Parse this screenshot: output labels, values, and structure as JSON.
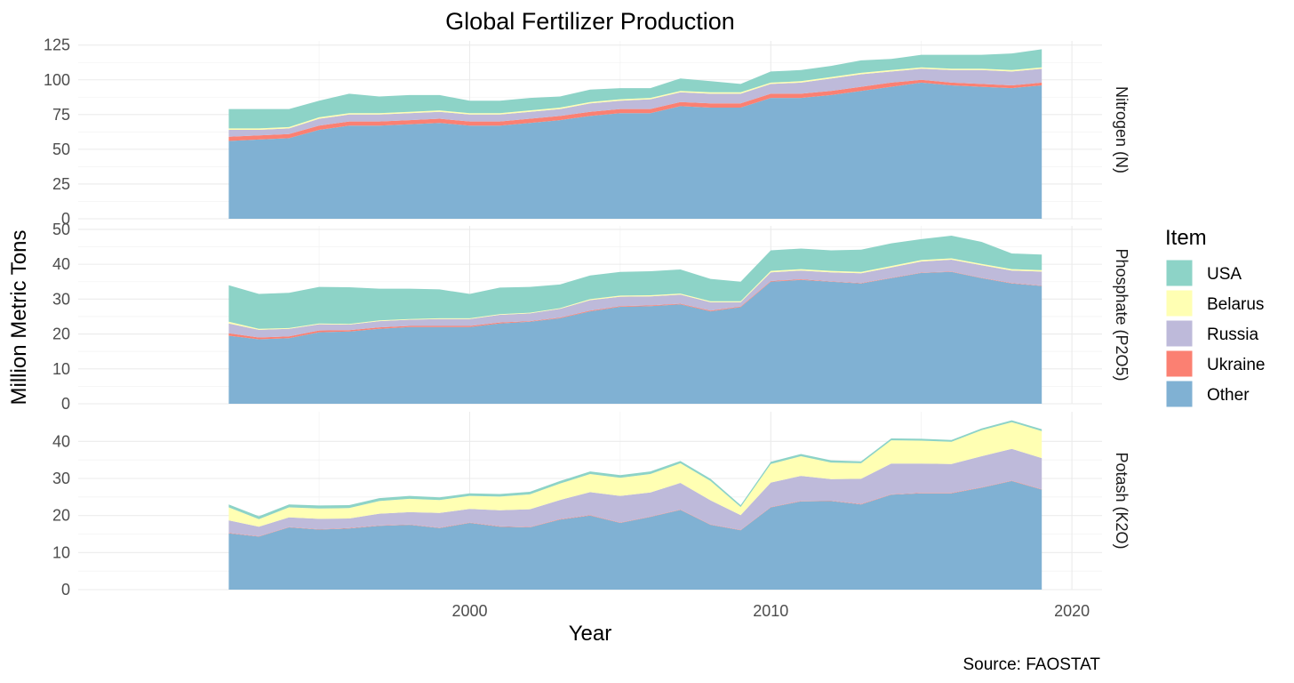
{
  "chart_data": {
    "type": "area",
    "stacked": true,
    "title": "Global Fertilizer Production",
    "xlabel": "Year",
    "ylabel": "Million Metric Tons",
    "caption": "Source: FAOSTAT",
    "legend_title": "Item",
    "legend_position": "right",
    "grid": true,
    "x": [
      1992,
      1993,
      1994,
      1995,
      1996,
      1997,
      1998,
      1999,
      2000,
      2001,
      2002,
      2003,
      2004,
      2005,
      2006,
      2007,
      2008,
      2009,
      2010,
      2011,
      2012,
      2013,
      2014,
      2015,
      2016,
      2017,
      2018,
      2019
    ],
    "xlim": [
      1987,
      2021
    ],
    "xticks": [
      2000,
      2010,
      2020
    ],
    "stack_order": [
      "Other",
      "Ukraine",
      "Russia",
      "Belarus",
      "USA"
    ],
    "legend_order": [
      "USA",
      "Belarus",
      "Russia",
      "Ukraine",
      "Other"
    ],
    "colors": {
      "USA": "#8DD3C7",
      "Belarus": "#FFFFB3",
      "Russia": "#BEBADA",
      "Ukraine": "#FB8072",
      "Other": "#80B1D3"
    },
    "panels": [
      {
        "name": "Nitrogen (N)",
        "ylim": [
          0,
          128
        ],
        "yticks": [
          0,
          25,
          50,
          75,
          100,
          125
        ],
        "series": [
          {
            "name": "Other",
            "values": [
              56,
              57,
              58,
              64,
              67,
              67,
              68,
              69,
              67,
              67,
              69,
              71,
              74,
              76,
              76,
              81,
              80,
              80,
              87,
              87,
              89,
              92,
              95,
              98,
              96,
              95,
              94,
              96
            ]
          },
          {
            "name": "Ukraine",
            "values": [
              3,
              3,
              3,
              3,
              3,
              3,
              3,
              3,
              3,
              3,
              3,
              3,
              3,
              3,
              3,
              3,
              3,
              3,
              3,
              3,
              3,
              3,
              3,
              2,
              2,
              2,
              2,
              2
            ]
          },
          {
            "name": "Russia",
            "values": [
              5,
              4,
              4,
              5,
              5,
              5,
              5,
              5,
              5,
              5,
              5,
              5,
              6,
              6,
              7,
              7,
              7,
              7,
              7,
              8,
              9,
              9,
              8,
              8,
              9,
              10,
              10,
              10
            ]
          },
          {
            "name": "Belarus",
            "values": [
              1,
              1,
              1,
              1,
              1,
              1,
              1,
              1,
              1,
              1,
              1,
              1,
              1,
              1,
              1,
              1,
              1,
              1,
              1,
              1,
              1,
              1,
              1,
              1,
              1,
              1,
              1,
              1
            ]
          },
          {
            "name": "USA",
            "values": [
              14,
              14,
              13,
              12,
              14,
              12,
              12,
              11,
              9,
              9,
              9,
              8,
              9,
              8,
              7,
              9,
              8,
              6,
              8,
              8,
              8,
              9,
              8,
              9,
              10,
              10,
              12,
              13
            ]
          }
        ]
      },
      {
        "name": "Phosphate (P2O5)",
        "ylim": [
          0,
          51
        ],
        "yticks": [
          0,
          10,
          20,
          30,
          40,
          50
        ],
        "series": [
          {
            "name": "Other",
            "values": [
              19.5,
              18.5,
              18.8,
              20.5,
              20.7,
              21.5,
              22,
              22,
              22,
              23,
              23.5,
              24.5,
              26.5,
              27.8,
              28,
              28.5,
              26.5,
              27.7,
              35,
              35.5,
              35,
              34.5,
              36,
              37.5,
              37.8,
              36,
              34.5,
              33.8
            ]
          },
          {
            "name": "Ukraine",
            "values": [
              0.7,
              0.5,
              0.5,
              0.5,
              0.4,
              0.4,
              0.3,
              0.3,
              0.3,
              0.3,
              0.2,
              0.2,
              0.2,
              0.2,
              0.2,
              0.2,
              0.2,
              0.2,
              0.2,
              0.2,
              0.1,
              0.1,
              0.1,
              0.1,
              0.1,
              0.1,
              0.1,
              0.1
            ]
          },
          {
            "name": "Russia",
            "values": [
              2.8,
              2.2,
              2.2,
              1.8,
              1.6,
              1.8,
              1.8,
              2,
              2,
              2.2,
              2.2,
              2.5,
              3,
              2.7,
              2.6,
              2.6,
              2.4,
              1.2,
              2.5,
              2.5,
              2.6,
              2.8,
              3,
              3.2,
              3.4,
              3.6,
              3.6,
              4
            ]
          },
          {
            "name": "Belarus",
            "values": [
              0.5,
              0.3,
              0.2,
              0.2,
              0.2,
              0.2,
              0.2,
              0.2,
              0.2,
              0.2,
              0.2,
              0.2,
              0.3,
              0.3,
              0.3,
              0.3,
              0.3,
              0.3,
              0.4,
              0.4,
              0.4,
              0.4,
              0.4,
              0.4,
              0.4,
              0.4,
              0.4,
              0.4
            ]
          },
          {
            "name": "USA",
            "values": [
              10.5,
              10,
              10.1,
              10.5,
              10.5,
              9.1,
              8.7,
              8.3,
              7,
              7.6,
              7.4,
              6.8,
              6.8,
              6.8,
              6.9,
              6.9,
              6.4,
              5.6,
              5.9,
              5.9,
              5.9,
              6.4,
              6.5,
              6,
              6.5,
              6.3,
              4.5,
              4.5
            ]
          }
        ]
      },
      {
        "name": "Potash (K2O)",
        "ylim": [
          0,
          48
        ],
        "yticks": [
          0,
          10,
          20,
          30,
          40
        ],
        "series": [
          {
            "name": "Other",
            "values": [
              15.2,
              14.3,
              16.8,
              16.2,
              16.5,
              17.2,
              17.5,
              16.6,
              18,
              17,
              16.8,
              18.9,
              20,
              18,
              19.6,
              21.5,
              17.5,
              16,
              22.2,
              23.8,
              23.9,
              23,
              25.6,
              26,
              26,
              27.5,
              29.3,
              27
            ]
          },
          {
            "name": "Ukraine",
            "values": [
              0.1,
              0.1,
              0.1,
              0.1,
              0.1,
              0.1,
              0.1,
              0.1,
              0.1,
              0.1,
              0.1,
              0.1,
              0.1,
              0.1,
              0.1,
              0.1,
              0.1,
              0.1,
              0.1,
              0.1,
              0.1,
              0.1,
              0.1,
              0.1,
              0.1,
              0.1,
              0.1,
              0.1
            ]
          },
          {
            "name": "Russia",
            "values": [
              3.4,
              2.6,
              2.6,
              2.8,
              2.6,
              3.2,
              3.3,
              4,
              3.7,
              4.3,
              4.8,
              5.2,
              6.2,
              7.2,
              6.5,
              7.2,
              6.5,
              4,
              6.6,
              6.8,
              5.8,
              6.8,
              8.3,
              7.9,
              7.8,
              8.4,
              8.6,
              8.4
            ]
          },
          {
            "name": "Belarus",
            "values": [
              3.5,
              2,
              2.7,
              2.8,
              2.8,
              3.4,
              3.6,
              3.5,
              3.5,
              3.7,
              4,
              4.4,
              4.9,
              4.9,
              5,
              5.3,
              5.2,
              2.2,
              5,
              5.3,
              4.5,
              4.2,
              6.3,
              6.2,
              6,
              7,
              7.2,
              7.3
            ]
          },
          {
            "name": "USA",
            "values": [
              0.8,
              0.8,
              0.8,
              0.8,
              0.8,
              0.8,
              0.8,
              0.7,
              0.7,
              0.7,
              0.7,
              0.7,
              0.7,
              0.7,
              0.7,
              0.6,
              0.6,
              0.5,
              0.6,
              0.6,
              0.6,
              0.5,
              0.5,
              0.5,
              0.5,
              0.5,
              0.5,
              0.5
            ]
          }
        ]
      }
    ]
  }
}
